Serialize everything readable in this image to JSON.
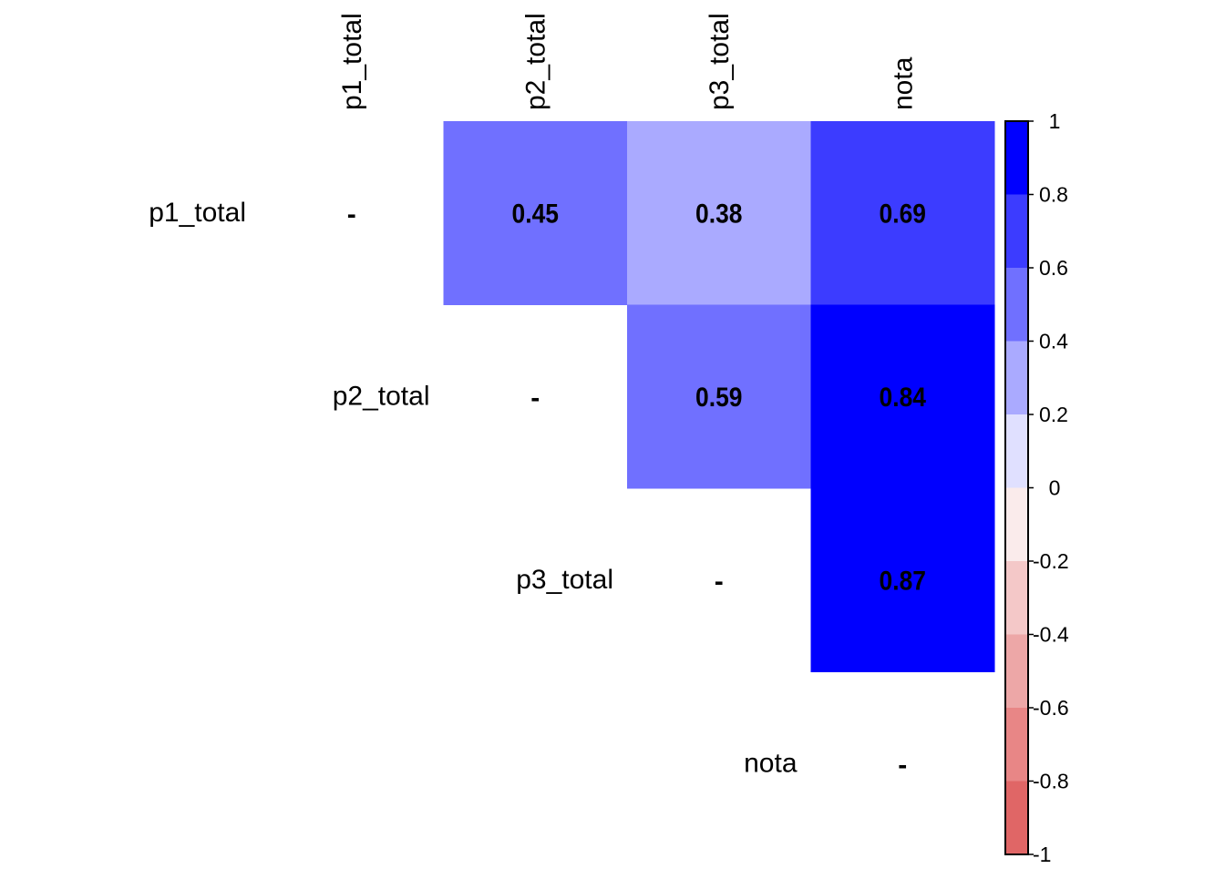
{
  "chart_data": {
    "type": "heatmap",
    "title": "",
    "variables": [
      "p1_total",
      "p2_total",
      "p3_total",
      "nota"
    ],
    "matrix_shape": "upper",
    "cells": [
      {
        "row": "p1_total",
        "col": "p1_total",
        "label": "-"
      },
      {
        "row": "p1_total",
        "col": "p2_total",
        "value": 0.45,
        "label": "0.45"
      },
      {
        "row": "p1_total",
        "col": "p3_total",
        "value": 0.38,
        "label": "0.38"
      },
      {
        "row": "p1_total",
        "col": "nota",
        "value": 0.69,
        "label": "0.69"
      },
      {
        "row": "p2_total",
        "col": "p2_total",
        "label": "-"
      },
      {
        "row": "p2_total",
        "col": "p3_total",
        "value": 0.59,
        "label": "0.59"
      },
      {
        "row": "p2_total",
        "col": "nota",
        "value": 0.84,
        "label": "0.84"
      },
      {
        "row": "p3_total",
        "col": "p3_total",
        "label": "-"
      },
      {
        "row": "p3_total",
        "col": "nota",
        "value": 0.87,
        "label": "0.87"
      },
      {
        "row": "nota",
        "col": "nota",
        "label": "-"
      }
    ],
    "colorbar": {
      "range": [
        -1,
        1
      ],
      "tick_labels": [
        "1",
        "0.8",
        "0.6",
        "0.4",
        "0.2",
        "0",
        "-0.2",
        "-0.4",
        "-0.6",
        "-0.8",
        "-1"
      ],
      "tick_values": [
        1,
        0.8,
        0.6,
        0.4,
        0.2,
        0,
        -0.2,
        -0.4,
        -0.6,
        -0.8,
        -1
      ],
      "bin_colors_top_to_bottom": [
        "#0000FF",
        "#3C3CFF",
        "#7070FF",
        "#AAAAFF",
        "#E0E0FF",
        "#FAEBEB",
        "#F4C8C8",
        "#EDA7A7",
        "#E88686",
        "#E06666"
      ]
    }
  }
}
